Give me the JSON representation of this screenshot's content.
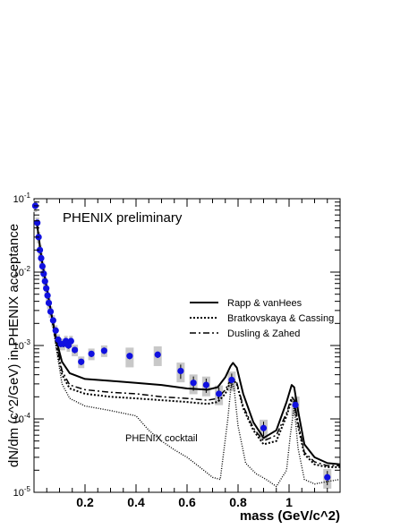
{
  "chart_data": {
    "type": "scatter",
    "xlabel": "mass (GeV/c^2)",
    "ylabel": "dN/dm (c^2/GeV) in PHENIX acceptance",
    "xlim": [
      0.0,
      1.2
    ],
    "ylim": [
      1e-05,
      0.1
    ],
    "yscale": "log",
    "xticks": [
      {
        "value": 0.2,
        "label": "0.2"
      },
      {
        "value": 0.4,
        "label": "0.4"
      },
      {
        "value": 0.6,
        "label": "0.6"
      },
      {
        "value": 0.8,
        "label": "0.8"
      },
      {
        "value": 1.0,
        "label": "1"
      }
    ],
    "yticks": [
      {
        "value": 1e-05,
        "base": "10",
        "exp": "-5"
      },
      {
        "value": 0.0001,
        "base": "10",
        "exp": "-4"
      },
      {
        "value": 0.001,
        "base": "10",
        "exp": "-3"
      },
      {
        "value": 0.01,
        "base": "10",
        "exp": "-2"
      },
      {
        "value": 0.1,
        "base": "10",
        "exp": "-1"
      }
    ],
    "grid": false,
    "legend_position": "right",
    "annotations": [
      "PHENIX preliminary",
      "PHENIX cocktail"
    ],
    "colors": {
      "data_marker": "#1010e0",
      "sys_box": "#c8c8c8",
      "line": "#000000"
    },
    "data_points": [
      {
        "x": 0.005,
        "y": 0.08
      },
      {
        "x": 0.013,
        "y": 0.047
      },
      {
        "x": 0.018,
        "y": 0.03
      },
      {
        "x": 0.023,
        "y": 0.02
      },
      {
        "x": 0.028,
        "y": 0.0155
      },
      {
        "x": 0.033,
        "y": 0.012
      },
      {
        "x": 0.038,
        "y": 0.0095
      },
      {
        "x": 0.043,
        "y": 0.0075
      },
      {
        "x": 0.048,
        "y": 0.006
      },
      {
        "x": 0.053,
        "y": 0.0048
      },
      {
        "x": 0.058,
        "y": 0.0038
      },
      {
        "x": 0.065,
        "y": 0.0029
      },
      {
        "x": 0.075,
        "y": 0.0022
      },
      {
        "x": 0.085,
        "y": 0.0016
      },
      {
        "x": 0.095,
        "y": 0.0012
      },
      {
        "x": 0.105,
        "y": 0.00105
      },
      {
        "x": 0.115,
        "y": 0.00105
      },
      {
        "x": 0.125,
        "y": 0.00115
      },
      {
        "x": 0.135,
        "y": 0.001
      },
      {
        "x": 0.145,
        "y": 0.00115
      },
      {
        "x": 0.16,
        "y": 0.00087
      },
      {
        "x": 0.185,
        "y": 0.0006
      },
      {
        "x": 0.225,
        "y": 0.00077
      },
      {
        "x": 0.275,
        "y": 0.00085
      },
      {
        "x": 0.375,
        "y": 0.00072
      },
      {
        "x": 0.485,
        "y": 0.00075
      },
      {
        "x": 0.575,
        "y": 0.00045
      },
      {
        "x": 0.625,
        "y": 0.00031
      },
      {
        "x": 0.675,
        "y": 0.00029
      },
      {
        "x": 0.725,
        "y": 0.00022
      },
      {
        "x": 0.775,
        "y": 0.00034
      },
      {
        "x": 0.9,
        "y": 7.5e-05
      },
      {
        "x": 1.025,
        "y": 0.000155
      },
      {
        "x": 1.15,
        "y": 1.6e-05
      }
    ],
    "series": [
      {
        "name": "Rapp & vanHees",
        "style": "solid",
        "x": [
          0.01,
          0.03,
          0.05,
          0.07,
          0.09,
          0.11,
          0.14,
          0.2,
          0.3,
          0.4,
          0.5,
          0.6,
          0.68,
          0.72,
          0.75,
          0.77,
          0.78,
          0.795,
          0.82,
          0.86,
          0.9,
          0.95,
          0.99,
          1.01,
          1.02,
          1.035,
          1.06,
          1.1,
          1.15,
          1.2
        ],
        "y": [
          0.05,
          0.015,
          0.006,
          0.0025,
          0.0011,
          0.0006,
          0.00042,
          0.00035,
          0.00033,
          0.00031,
          0.00029,
          0.00026,
          0.00025,
          0.00027,
          0.00037,
          0.00052,
          0.00058,
          0.0005,
          0.00022,
          9e-05,
          5.5e-05,
          7e-05,
          0.00017,
          0.00029,
          0.00027,
          0.00013,
          4.5e-05,
          3e-05,
          2.5e-05,
          2.4e-05
        ]
      },
      {
        "name": "Bratkovskaya & Cassing",
        "style": "dotted",
        "x": [
          0.01,
          0.03,
          0.05,
          0.07,
          0.09,
          0.11,
          0.14,
          0.2,
          0.3,
          0.4,
          0.5,
          0.6,
          0.68,
          0.72,
          0.75,
          0.77,
          0.78,
          0.795,
          0.82,
          0.86,
          0.9,
          0.95,
          0.99,
          1.01,
          1.02,
          1.035,
          1.06,
          1.1,
          1.15,
          1.2
        ],
        "y": [
          0.05,
          0.015,
          0.006,
          0.0024,
          0.0009,
          0.0004,
          0.00026,
          0.00022,
          0.0002,
          0.00019,
          0.00018,
          0.00017,
          0.00016,
          0.00017,
          0.00022,
          0.00032,
          0.00034,
          0.0003,
          0.00014,
          7e-05,
          4.5e-05,
          5e-05,
          0.00011,
          0.00018,
          0.00017,
          8e-05,
          3.3e-05,
          2.4e-05,
          2.2e-05,
          2.2e-05
        ]
      },
      {
        "name": "Dusling & Zahed",
        "style": "dashdot",
        "x": [
          0.01,
          0.03,
          0.05,
          0.07,
          0.09,
          0.11,
          0.14,
          0.2,
          0.3,
          0.4,
          0.5,
          0.6,
          0.68,
          0.72,
          0.75,
          0.77,
          0.78,
          0.795,
          0.82,
          0.86,
          0.9,
          0.95,
          0.99,
          1.01,
          1.02,
          1.035,
          1.06,
          1.1,
          1.15,
          1.2
        ],
        "y": [
          0.05,
          0.015,
          0.006,
          0.0024,
          0.001,
          0.00045,
          0.00029,
          0.00025,
          0.00023,
          0.00022,
          0.0002,
          0.00019,
          0.00018,
          0.00019,
          0.00025,
          0.00034,
          0.00036,
          0.00031,
          0.00015,
          7.5e-05,
          5e-05,
          6e-05,
          0.00012,
          0.0002,
          0.00018,
          9e-05,
          3.5e-05,
          2.6e-05,
          2.3e-05,
          2.3e-05
        ]
      },
      {
        "name": "PHENIX cocktail",
        "style": "fine-dotted",
        "x": [
          0.01,
          0.03,
          0.05,
          0.07,
          0.09,
          0.11,
          0.14,
          0.2,
          0.3,
          0.4,
          0.45,
          0.5,
          0.55,
          0.6,
          0.65,
          0.7,
          0.73,
          0.76,
          0.775,
          0.785,
          0.8,
          0.83,
          0.87,
          0.91,
          0.95,
          0.99,
          1.005,
          1.02,
          1.035,
          1.06,
          1.1,
          1.15,
          1.2
        ],
        "y": [
          0.05,
          0.015,
          0.006,
          0.0023,
          0.0008,
          0.0003,
          0.00019,
          0.00015,
          0.00013,
          0.00011,
          7e-05,
          5e-05,
          3.8e-05,
          3e-05,
          2.2e-05,
          1.6e-05,
          1.5e-05,
          0.0001,
          0.00035,
          0.00025,
          8e-05,
          2.5e-05,
          1.8e-05,
          1.5e-05,
          1.2e-05,
          2e-05,
          6e-05,
          0.00015,
          4e-05,
          1.5e-05,
          1.3e-05,
          1.4e-05,
          1.5e-05
        ]
      }
    ]
  }
}
